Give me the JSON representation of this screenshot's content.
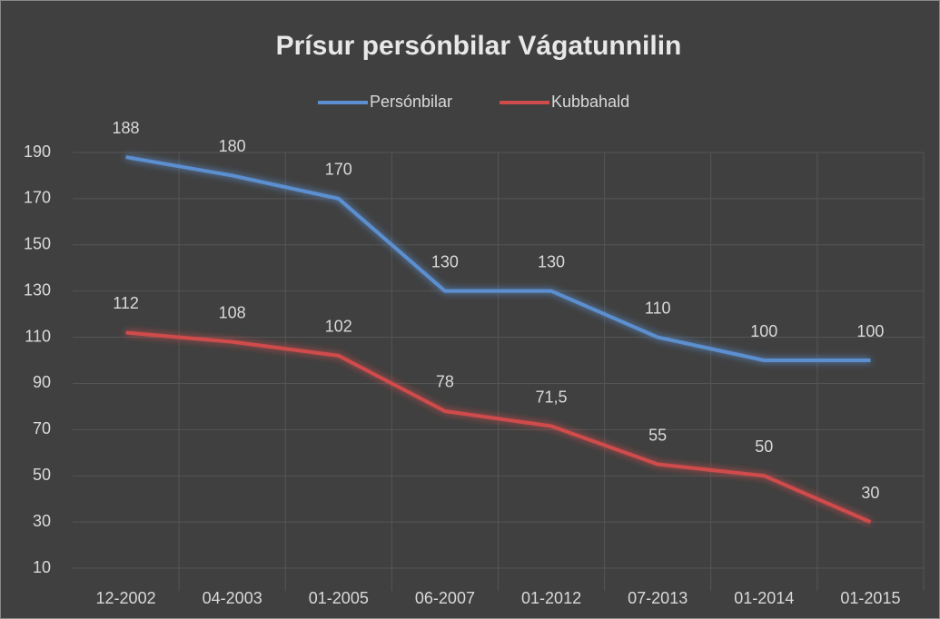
{
  "chart_data": {
    "type": "line",
    "title": "Prísur persónbilar Vágatunnilin",
    "categories": [
      "12-2002",
      "04-2003",
      "01-2005",
      "06-2007",
      "01-2012",
      "07-2013",
      "01-2014",
      "01-2015"
    ],
    "series": [
      {
        "name": "Persónbilar",
        "color": "#5b8fd0",
        "values": [
          188,
          180,
          170,
          130,
          130,
          110,
          100,
          100
        ]
      },
      {
        "name": "Kubbahald",
        "color": "#d04b4b",
        "values": [
          112,
          108,
          102,
          78,
          71.5,
          55,
          50,
          30
        ],
        "value_labels": [
          "112",
          "108",
          "102",
          "78",
          "71,5",
          "55",
          "50",
          "30"
        ]
      }
    ],
    "ylim": [
      10,
      190
    ],
    "yticks": [
      10,
      30,
      50,
      70,
      90,
      110,
      130,
      150,
      170,
      190
    ],
    "grid": true,
    "legend": "top"
  }
}
